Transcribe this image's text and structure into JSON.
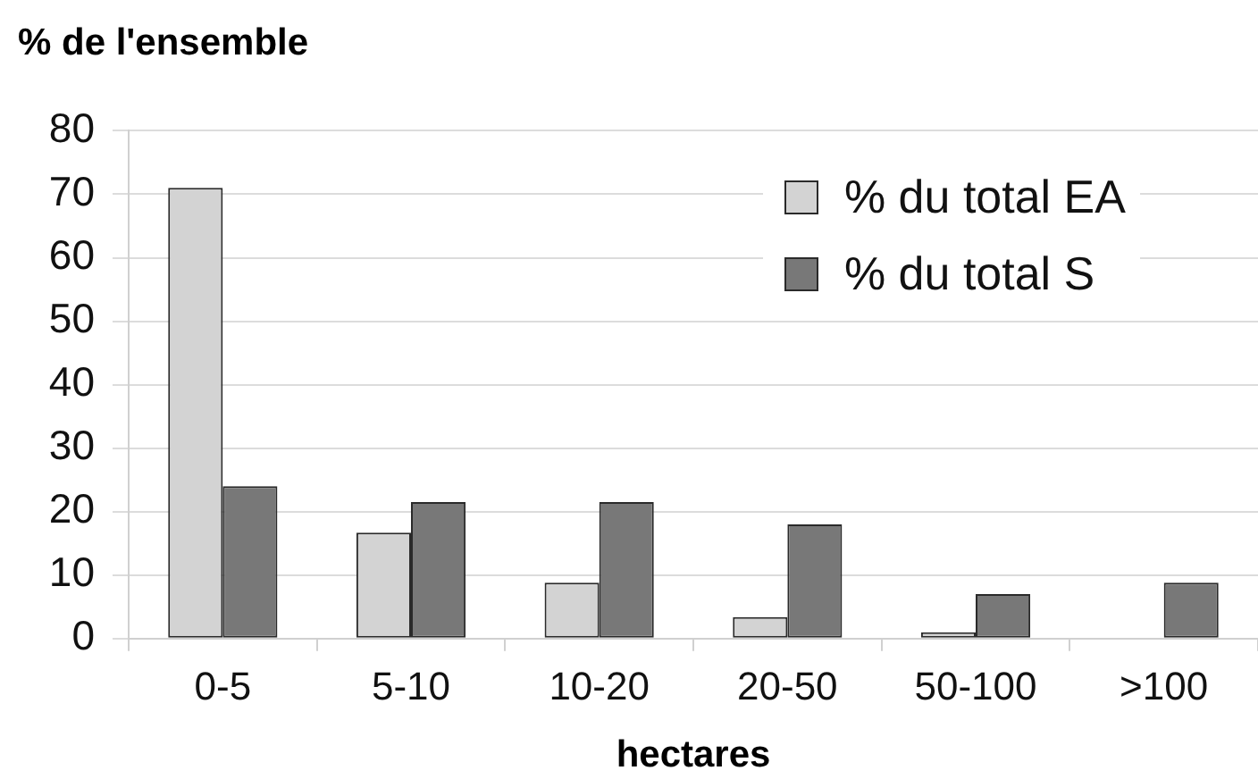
{
  "chart_data": {
    "type": "bar",
    "ylabel": "% de l'ensemble",
    "xlabel": "hectares",
    "categories": [
      "0-5",
      "5-10",
      "10-20",
      "20-50",
      "50-100",
      ">100"
    ],
    "series": [
      {
        "name": "% du total EA",
        "color": "#d3d3d3",
        "values": [
          71,
          16.7,
          8.8,
          3.4,
          1,
          0
        ]
      },
      {
        "name": "% du total S",
        "color": "#787878",
        "values": [
          24,
          21.5,
          21.5,
          18,
          7,
          8.8
        ]
      }
    ],
    "ylim": [
      0,
      80
    ],
    "yticks": [
      0,
      10,
      20,
      30,
      40,
      50,
      60,
      70,
      80
    ],
    "grid": "y",
    "legend": "top right"
  }
}
